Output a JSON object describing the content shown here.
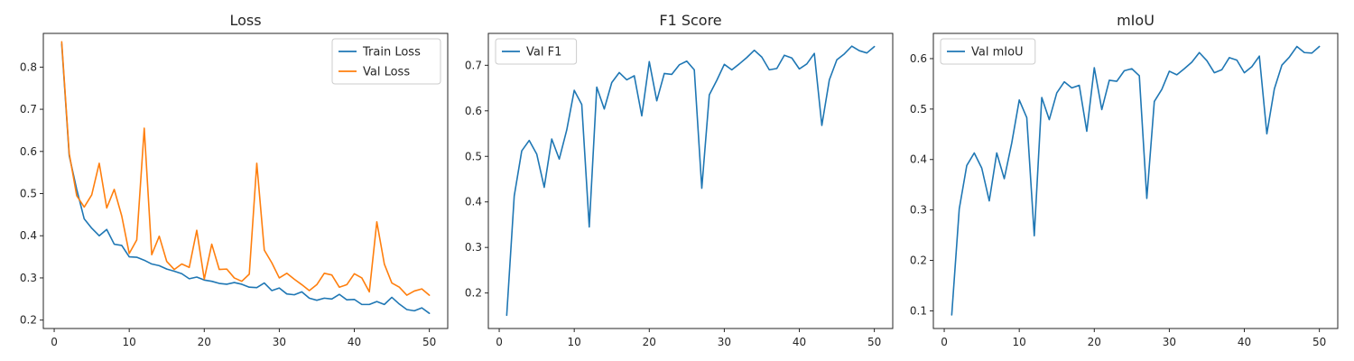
{
  "chart_data": [
    {
      "type": "line",
      "title": "Loss",
      "xlabel": "",
      "ylabel": "",
      "xlim": [
        -1.45,
        52.45
      ],
      "ylim": [
        0.18,
        0.88
      ],
      "xticks": [
        0,
        10,
        20,
        30,
        40,
        50
      ],
      "yticks": [
        0.2,
        0.3,
        0.4,
        0.5,
        0.6,
        0.7,
        0.8
      ],
      "grid": false,
      "legend_position": "top-right",
      "x": [
        1,
        2,
        3,
        4,
        5,
        6,
        7,
        8,
        9,
        10,
        11,
        12,
        13,
        14,
        15,
        16,
        17,
        18,
        19,
        20,
        21,
        22,
        23,
        24,
        25,
        26,
        27,
        28,
        29,
        30,
        31,
        32,
        33,
        34,
        35,
        36,
        37,
        38,
        39,
        40,
        41,
        42,
        43,
        44,
        45,
        46,
        47,
        48,
        49,
        50
      ],
      "series": [
        {
          "name": "Train Loss",
          "color": "#1f77b4",
          "values": [
            0.855,
            0.59,
            0.51,
            0.44,
            0.418,
            0.4,
            0.415,
            0.38,
            0.377,
            0.35,
            0.349,
            0.342,
            0.333,
            0.329,
            0.321,
            0.316,
            0.31,
            0.298,
            0.302,
            0.295,
            0.292,
            0.287,
            0.285,
            0.289,
            0.285,
            0.278,
            0.277,
            0.288,
            0.27,
            0.276,
            0.262,
            0.26,
            0.267,
            0.252,
            0.247,
            0.252,
            0.25,
            0.261,
            0.248,
            0.249,
            0.237,
            0.237,
            0.244,
            0.237,
            0.254,
            0.238,
            0.225,
            0.222,
            0.229,
            0.216
          ]
        },
        {
          "name": "Val Loss",
          "color": "#ff7f0e",
          "values": [
            0.86,
            0.595,
            0.495,
            0.468,
            0.497,
            0.572,
            0.466,
            0.51,
            0.447,
            0.358,
            0.39,
            0.655,
            0.355,
            0.399,
            0.339,
            0.32,
            0.333,
            0.325,
            0.413,
            0.297,
            0.38,
            0.32,
            0.321,
            0.3,
            0.292,
            0.309,
            0.572,
            0.366,
            0.336,
            0.3,
            0.311,
            0.297,
            0.284,
            0.27,
            0.284,
            0.311,
            0.307,
            0.278,
            0.284,
            0.31,
            0.3,
            0.267,
            0.433,
            0.333,
            0.288,
            0.278,
            0.259,
            0.269,
            0.274,
            0.259
          ]
        }
      ]
    },
    {
      "type": "line",
      "title": "F1 Score",
      "xlabel": "",
      "ylabel": "",
      "xlim": [
        -1.45,
        52.45
      ],
      "ylim": [
        0.122,
        0.77
      ],
      "xticks": [
        0,
        10,
        20,
        30,
        40,
        50
      ],
      "yticks": [
        0.2,
        0.3,
        0.4,
        0.5,
        0.6,
        0.7
      ],
      "grid": false,
      "legend_position": "top-left",
      "x": [
        1,
        2,
        3,
        4,
        5,
        6,
        7,
        8,
        9,
        10,
        11,
        12,
        13,
        14,
        15,
        16,
        17,
        18,
        19,
        20,
        21,
        22,
        23,
        24,
        25,
        26,
        27,
        28,
        29,
        30,
        31,
        32,
        33,
        34,
        35,
        36,
        37,
        38,
        39,
        40,
        41,
        42,
        43,
        44,
        45,
        46,
        47,
        48,
        49,
        50
      ],
      "series": [
        {
          "name": "Val F1",
          "color": "#1f77b4",
          "values": [
            0.151,
            0.413,
            0.512,
            0.535,
            0.505,
            0.432,
            0.538,
            0.494,
            0.558,
            0.645,
            0.614,
            0.345,
            0.652,
            0.604,
            0.662,
            0.684,
            0.668,
            0.677,
            0.589,
            0.708,
            0.622,
            0.682,
            0.68,
            0.701,
            0.709,
            0.69,
            0.43,
            0.635,
            0.667,
            0.702,
            0.69,
            0.703,
            0.717,
            0.733,
            0.718,
            0.69,
            0.693,
            0.722,
            0.716,
            0.692,
            0.703,
            0.726,
            0.568,
            0.668,
            0.712,
            0.725,
            0.742,
            0.732,
            0.727,
            0.741
          ]
        }
      ]
    },
    {
      "type": "line",
      "title": "mIoU",
      "xlabel": "",
      "ylabel": "",
      "xlim": [
        -1.45,
        52.45
      ],
      "ylim": [
        0.065,
        0.65
      ],
      "xticks": [
        0,
        10,
        20,
        30,
        40,
        50
      ],
      "yticks": [
        0.1,
        0.2,
        0.3,
        0.4,
        0.5,
        0.6
      ],
      "grid": false,
      "legend_position": "top-left",
      "x": [
        1,
        2,
        3,
        4,
        5,
        6,
        7,
        8,
        9,
        10,
        11,
        12,
        13,
        14,
        15,
        16,
        17,
        18,
        19,
        20,
        21,
        22,
        23,
        24,
        25,
        26,
        27,
        28,
        29,
        30,
        31,
        32,
        33,
        34,
        35,
        36,
        37,
        38,
        39,
        40,
        41,
        42,
        43,
        44,
        45,
        46,
        47,
        48,
        49,
        50
      ],
      "series": [
        {
          "name": "Val mIoU",
          "color": "#1f77b4",
          "values": [
            0.092,
            0.302,
            0.388,
            0.413,
            0.383,
            0.318,
            0.413,
            0.362,
            0.433,
            0.518,
            0.483,
            0.249,
            0.523,
            0.479,
            0.532,
            0.554,
            0.542,
            0.547,
            0.456,
            0.582,
            0.499,
            0.557,
            0.555,
            0.576,
            0.58,
            0.566,
            0.323,
            0.515,
            0.539,
            0.575,
            0.568,
            0.58,
            0.593,
            0.612,
            0.596,
            0.572,
            0.578,
            0.602,
            0.597,
            0.572,
            0.584,
            0.605,
            0.451,
            0.54,
            0.587,
            0.603,
            0.624,
            0.612,
            0.611,
            0.624
          ]
        }
      ]
    }
  ]
}
